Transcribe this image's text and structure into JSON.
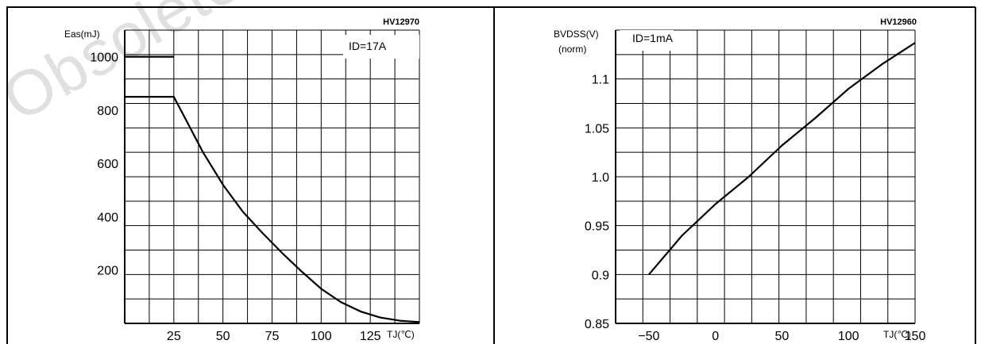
{
  "watermark": "Obsolete",
  "chart_data": [
    {
      "type": "line",
      "figure_code": "HV12970",
      "ylabel": "Eas(mJ)",
      "xlabel": "TJ(℃)",
      "annotation": "ID=17A",
      "xlim": [
        0,
        150
      ],
      "ylim": [
        0,
        1100
      ],
      "x_ticks": [
        25,
        50,
        75,
        100,
        125
      ],
      "y_ticks": [
        200,
        400,
        600,
        800,
        1000
      ],
      "grid": true,
      "series": [
        {
          "x": [
            0,
            25,
            30,
            40,
            50,
            60,
            70,
            80,
            90,
            100,
            110,
            120,
            130,
            140,
            150
          ],
          "y": [
            850,
            850,
            780,
            640,
            520,
            420,
            340,
            265,
            195,
            130,
            80,
            45,
            22,
            10,
            5
          ]
        },
        {
          "x": [
            0,
            25
          ],
          "y": [
            1000,
            1000
          ]
        }
      ]
    },
    {
      "type": "line",
      "figure_code": "HV12960",
      "ylabel": "BVDSS(V)",
      "ylabel_sub": "(norm)",
      "xlabel": "TJ(℃)",
      "annotation": "ID=1mA",
      "xlim": [
        -75,
        150
      ],
      "ylim": [
        0.85,
        1.15
      ],
      "x_ticks": [
        -50,
        0,
        50,
        100,
        150
      ],
      "x_tick_labels": [
        "−50",
        "0",
        "50",
        "100",
        "150"
      ],
      "y_ticks": [
        0.85,
        0.9,
        0.95,
        1.0,
        1.05,
        1.1
      ],
      "y_tick_labels": [
        "0.85",
        "0.9",
        "0.95",
        "1.0",
        "1.05",
        "1.1"
      ],
      "grid": true,
      "series": [
        {
          "x": [
            -50,
            -25,
            0,
            25,
            50,
            75,
            100,
            125,
            150
          ],
          "y": [
            0.9,
            0.94,
            0.972,
            1.0,
            1.032,
            1.06,
            1.09,
            1.115,
            1.137
          ]
        }
      ]
    }
  ]
}
